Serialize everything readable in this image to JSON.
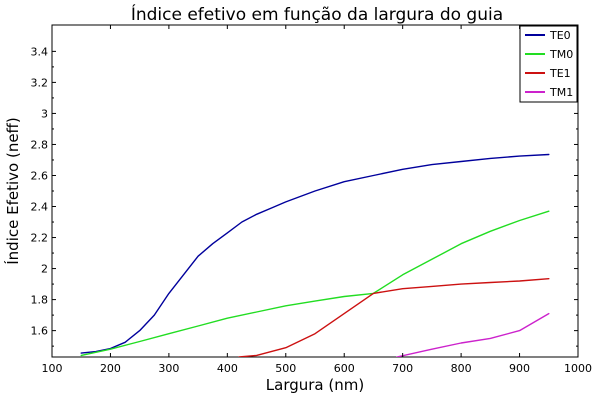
{
  "chart_data": {
    "type": "line",
    "title": "Índice efetivo em função da largura do guia",
    "xlabel": "Largura (nm)",
    "ylabel": "Índice Efetivo (neff)",
    "xlim": [
      100,
      1000
    ],
    "ylim": [
      1.43,
      3.57
    ],
    "x_ticks": [
      100,
      200,
      300,
      400,
      500,
      600,
      700,
      800,
      900,
      1000
    ],
    "y_ticks": [
      1.6,
      1.8,
      2,
      2.2,
      2.4,
      2.6,
      2.8,
      3,
      3.2,
      3.4
    ],
    "x_tick_labels": [
      "100",
      "200",
      "300",
      "400",
      "500",
      "600",
      "700",
      "800",
      "900",
      "1000"
    ],
    "y_tick_labels": [
      "1.6",
      "1.8",
      "2",
      "2.2",
      "2.4",
      "2.6",
      "2.8",
      "3",
      "3.2",
      "3.4"
    ],
    "grid": false,
    "legend_position": "top-right",
    "series": [
      {
        "name": "TE0",
        "color": "#00009c",
        "x": [
          150,
          175,
          200,
          225,
          250,
          275,
          300,
          325,
          350,
          375,
          400,
          425,
          450,
          475,
          500,
          550,
          600,
          650,
          700,
          750,
          800,
          850,
          900,
          950
        ],
        "y": [
          1.455,
          1.465,
          1.485,
          1.525,
          1.6,
          1.7,
          1.84,
          1.96,
          2.08,
          2.16,
          2.23,
          2.3,
          2.35,
          2.39,
          2.43,
          2.5,
          2.56,
          2.6,
          2.64,
          2.67,
          2.69,
          2.71,
          2.725,
          2.735
        ]
      },
      {
        "name": "TM0",
        "color": "#22dd22",
        "x": [
          150,
          200,
          250,
          300,
          350,
          400,
          450,
          500,
          550,
          600,
          650,
          700,
          750,
          800,
          850,
          900,
          950
        ],
        "y": [
          1.44,
          1.48,
          1.53,
          1.58,
          1.63,
          1.68,
          1.72,
          1.76,
          1.79,
          1.82,
          1.84,
          1.96,
          2.06,
          2.16,
          2.24,
          2.31,
          2.37
        ]
      },
      {
        "name": "TE1",
        "color": "#cc1111",
        "x": [
          420,
          450,
          500,
          550,
          600,
          650,
          700,
          750,
          800,
          850,
          900,
          950
        ],
        "y": [
          1.43,
          1.44,
          1.49,
          1.58,
          1.71,
          1.84,
          1.87,
          1.885,
          1.9,
          1.91,
          1.92,
          1.935
        ]
      },
      {
        "name": "TM1",
        "color": "#cc22cc",
        "x": [
          690,
          750,
          800,
          850,
          900,
          950
        ],
        "y": [
          1.43,
          1.48,
          1.52,
          1.55,
          1.6,
          1.71
        ]
      }
    ]
  }
}
